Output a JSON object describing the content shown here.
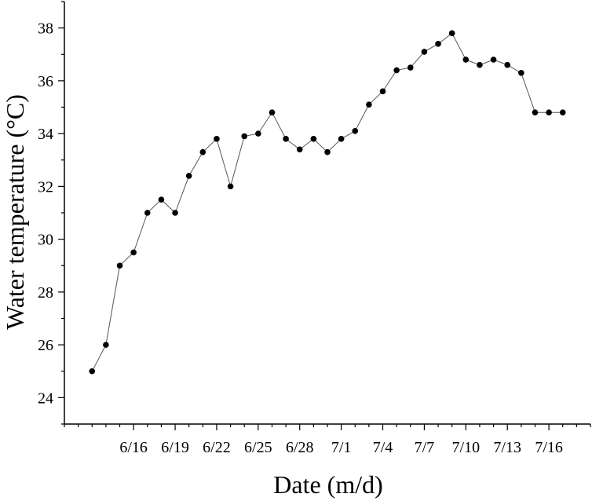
{
  "chart_data": {
    "type": "line",
    "xlabel": "Date (m/d)",
    "ylabel": "Water temperature (°C)",
    "ylim": [
      23,
      39
    ],
    "xlim": [
      "6/11",
      "7/19"
    ],
    "x_ticks": [
      "6/16",
      "6/19",
      "6/22",
      "6/25",
      "6/28",
      "7/1",
      "7/4",
      "7/7",
      "7/10",
      "7/13",
      "7/16"
    ],
    "y_ticks": [
      24,
      26,
      28,
      30,
      32,
      34,
      36,
      38
    ],
    "grid": false,
    "line_color": "#555555",
    "marker_color": "#000000",
    "series": [
      {
        "x": [
          "6/13",
          "6/14",
          "6/15",
          "6/16",
          "6/17",
          "6/18",
          "6/19",
          "6/20",
          "6/21",
          "6/22",
          "6/23",
          "6/24",
          "6/25",
          "6/26",
          "6/27",
          "6/28",
          "6/29",
          "6/30",
          "7/1",
          "7/2",
          "7/3",
          "7/4",
          "7/5",
          "7/6",
          "7/7",
          "7/8",
          "7/9",
          "7/10",
          "7/11",
          "7/12",
          "7/13",
          "7/14",
          "7/15",
          "7/16",
          "7/17"
        ],
        "values": [
          25.0,
          26.0,
          29.0,
          29.5,
          31.0,
          31.5,
          31.0,
          32.4,
          33.3,
          33.8,
          32.0,
          33.9,
          34.0,
          34.8,
          33.8,
          33.4,
          33.8,
          33.3,
          33.8,
          34.1,
          35.1,
          35.6,
          36.4,
          36.5,
          37.1,
          37.4,
          37.8,
          36.8,
          36.6,
          36.8,
          36.6,
          36.3,
          34.8,
          34.8,
          34.8
        ]
      }
    ]
  }
}
